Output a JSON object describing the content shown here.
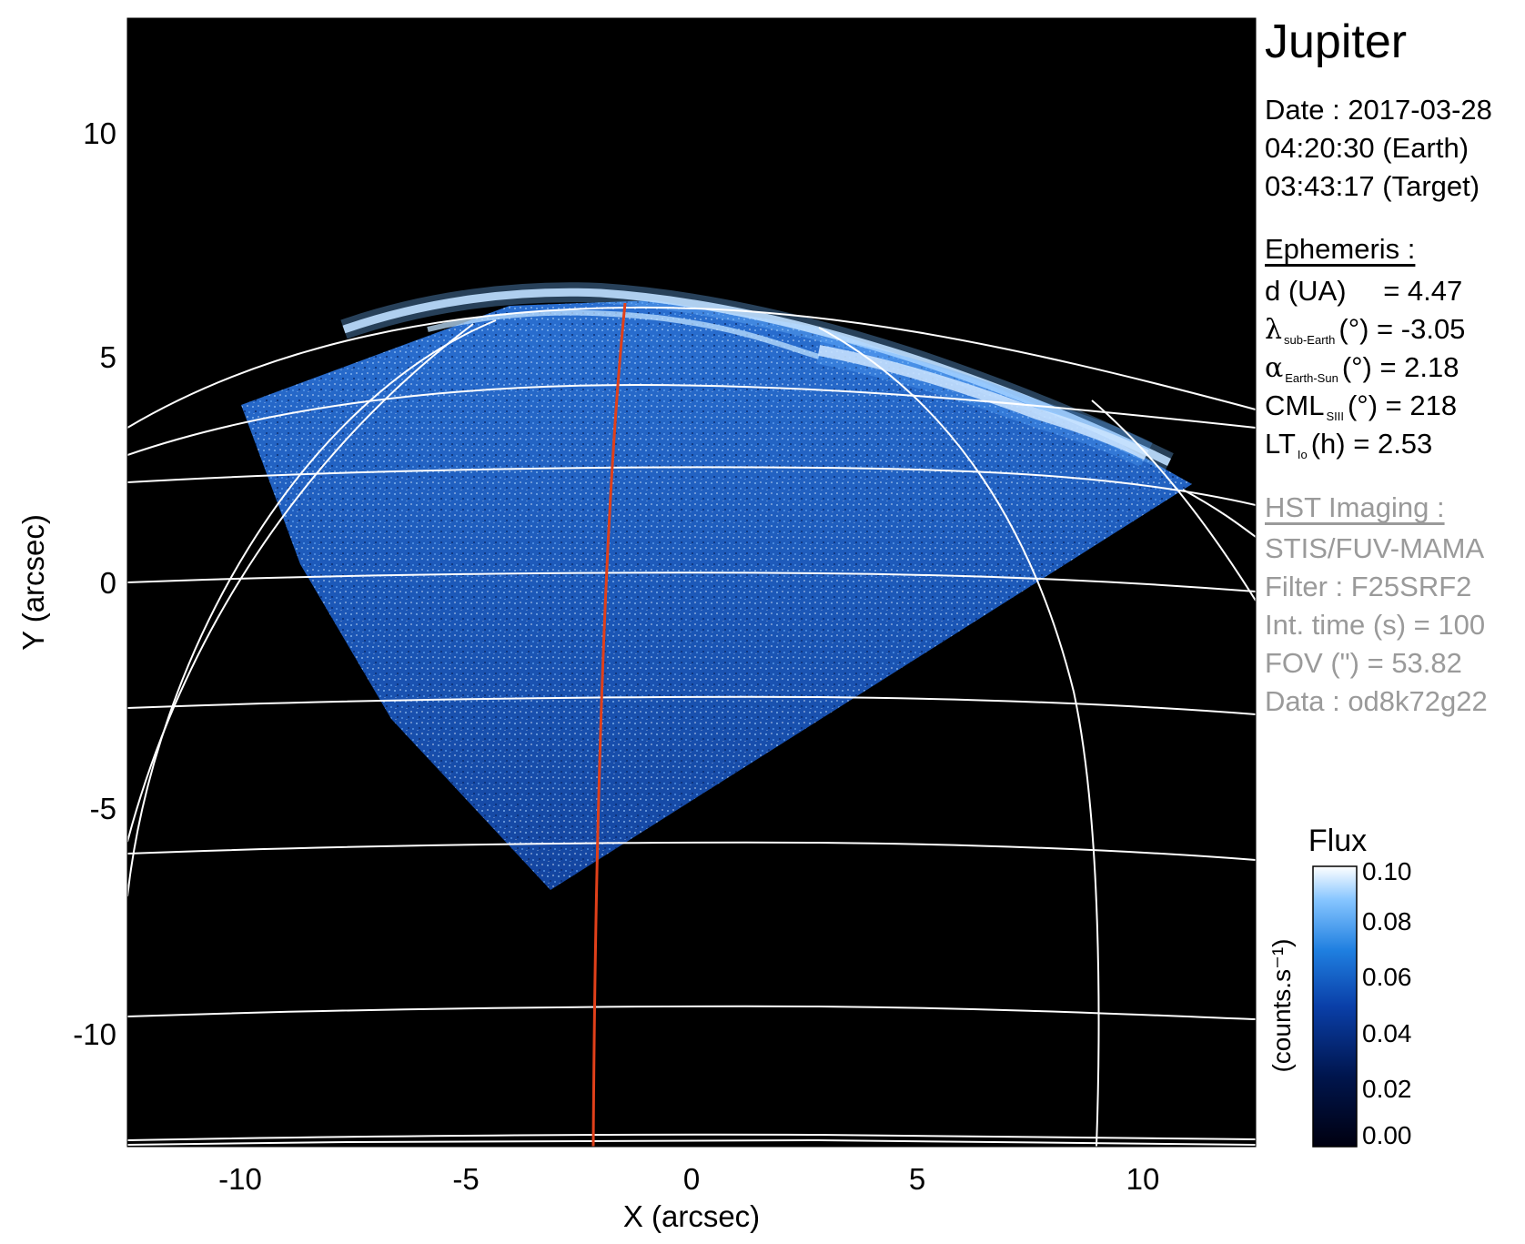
{
  "plot": {
    "x_axis": {
      "label": "X (arcsec)",
      "range": [
        -12.5,
        12.5
      ],
      "ticks": [
        "-10",
        "-5",
        "0",
        "5",
        "10"
      ]
    },
    "y_axis": {
      "label": "Y (arcsec)",
      "range": [
        -12.5,
        12.5
      ],
      "ticks": [
        "10",
        "5",
        "0",
        "-5",
        "-10"
      ]
    },
    "background": "#000000",
    "grid_color": "#ffffff",
    "meridian_color": "#e0401a"
  },
  "info": {
    "title": "Jupiter",
    "date_line": "Date : 2017-03-28",
    "earth_time": "04:20:30 (Earth)",
    "target_time": "03:43:17 (Target)",
    "ephemeris": {
      "heading": "Ephemeris :",
      "d_label": "d (UA)",
      "d_value": "= 4.47",
      "lambda_symbol": "λ",
      "lambda_sub": "sub-Earth",
      "lambda_value": "(°) = -3.05",
      "alpha_symbol": "α",
      "alpha_sub": "Earth-Sun",
      "alpha_value": "(°) = 2.18",
      "cml_label": "CML",
      "cml_sub": "SIII",
      "cml_value": "(°) = 218",
      "lt_label": "LT",
      "lt_sub": "Io",
      "lt_value": "(h) = 2.53"
    },
    "hst": {
      "heading": "HST Imaging :",
      "instrument": "STIS/FUV-MAMA",
      "filter": "Filter : F25SRF2",
      "int_time": "Int. time (s) = 100",
      "fov": "FOV (\") = 53.82",
      "data": "Data : od8k72g22"
    }
  },
  "colorbar": {
    "title": "Flux",
    "unit_label": "(counts.s⁻¹)",
    "ticks": [
      "0.10",
      "0.08",
      "0.06",
      "0.04",
      "0.02",
      "0.00"
    ],
    "range": [
      0.0,
      0.1
    ],
    "colors": [
      "#000010",
      "#00154d",
      "#0a3fa8",
      "#1f7fe0",
      "#86c5ff",
      "#ffffff"
    ]
  }
}
